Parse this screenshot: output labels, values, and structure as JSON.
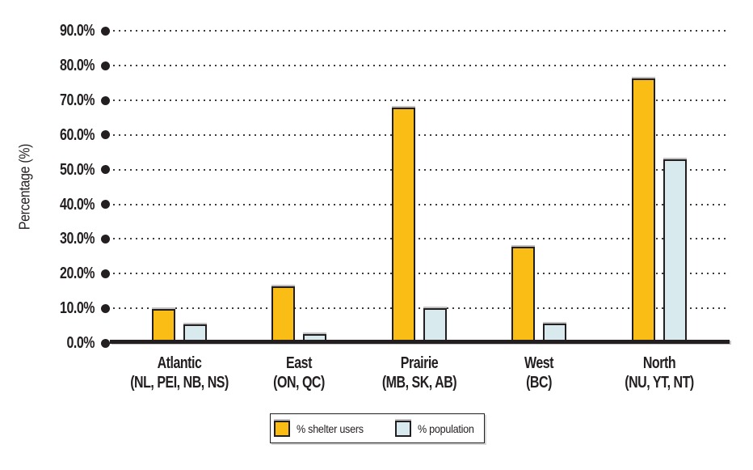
{
  "chart_data": {
    "type": "bar",
    "ylabel": "Percentage (%)",
    "ylim": [
      0,
      90
    ],
    "ytick_step": 10,
    "ytick_labels": [
      "0.0%",
      "10.0%",
      "20.0%",
      "30.0%",
      "40.0%",
      "50.0%",
      "60.0%",
      "70.0%",
      "80.0%",
      "90.0%"
    ],
    "grid": "horizontal dotted lines, each starting with a filled black bullet at the y-axis",
    "legend_position": "bottom-center boxed",
    "categories": [
      "Atlantic",
      "East",
      "Prairie",
      "West",
      "North"
    ],
    "category_subtitles": [
      "(NL, PEI, NB, NS)",
      "(ON, QC)",
      "(MB, SK, AB)",
      "(BC)",
      "(NU, YT, NT)"
    ],
    "series": [
      {
        "name": "% shelter users",
        "color": "#F9BD15",
        "values": [
          9.8,
          16.4,
          68.0,
          27.8,
          76.2
        ]
      },
      {
        "name": "% population",
        "color": "#D9EAEE",
        "values": [
          5.4,
          2.5,
          10.0,
          5.6,
          53.0
        ]
      }
    ],
    "bar_border_color": "#231F20",
    "text_color": "#231F20"
  }
}
